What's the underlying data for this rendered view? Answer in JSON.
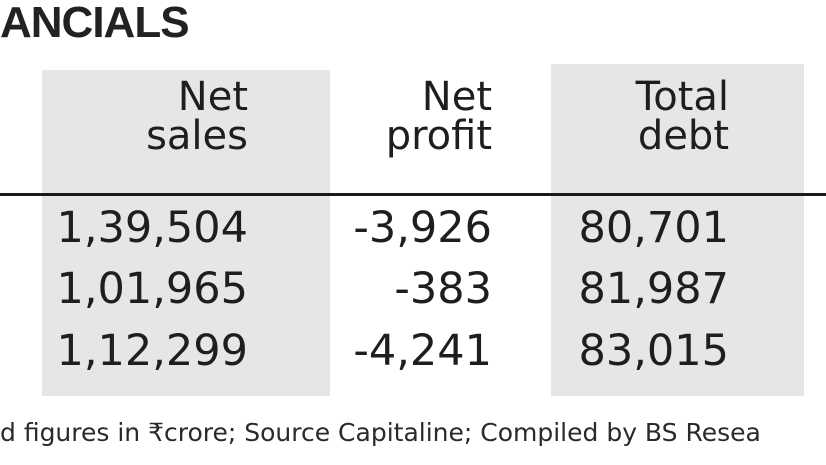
{
  "title": "ANCIALS",
  "table": {
    "headers": [
      {
        "line1": "Net",
        "line2": "sales"
      },
      {
        "line1": "Net",
        "line2": "profit"
      },
      {
        "line1": "Total",
        "line2": "debt"
      }
    ],
    "rows": [
      {
        "net_sales": "1,39,504",
        "net_profit": "-3,926",
        "total_debt": "80,701"
      },
      {
        "net_sales": "1,01,965",
        "net_profit": "-383",
        "total_debt": "81,987"
      },
      {
        "net_sales": "1,12,299",
        "net_profit": "-4,241",
        "total_debt": "83,015"
      }
    ]
  },
  "footnote": "d figures in ₹crore; Source Capitaline; Compiled by BS Resea",
  "colors": {
    "shaded_column": "#e6e6e6",
    "rule": "#1a1a1a",
    "text": "#1e1e1e"
  }
}
